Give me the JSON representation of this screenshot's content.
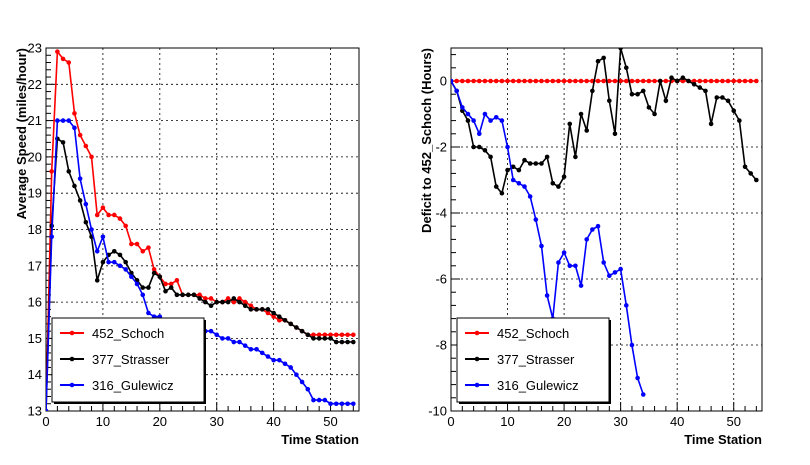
{
  "chart_data": [
    {
      "type": "line",
      "xlabel": "Time Station",
      "ylabel": "Average Speed (miles/hour)",
      "xlim": [
        0,
        55
      ],
      "ylim": [
        13,
        23
      ],
      "xticks": [
        0,
        10,
        20,
        30,
        40,
        50
      ],
      "yticks": [
        13,
        14,
        15,
        16,
        17,
        18,
        19,
        20,
        21,
        22,
        23
      ],
      "grid": true,
      "legend_position": "bottom-left",
      "series": [
        {
          "name": "452_Schoch",
          "color": "#ff0000",
          "x": [
            0,
            1,
            2,
            3,
            4,
            5,
            6,
            7,
            8,
            9,
            10,
            11,
            12,
            13,
            14,
            15,
            16,
            17,
            18,
            19,
            20,
            21,
            22,
            23,
            24,
            25,
            26,
            27,
            28,
            29,
            30,
            31,
            32,
            33,
            34,
            35,
            36,
            37,
            38,
            39,
            40,
            41,
            42,
            43,
            44,
            45,
            46,
            47,
            48,
            49,
            50,
            51,
            52,
            53,
            54
          ],
          "y": [
            13.0,
            19.6,
            22.9,
            22.7,
            22.6,
            21.2,
            20.6,
            20.3,
            20.0,
            18.4,
            18.6,
            18.4,
            18.4,
            18.3,
            18.1,
            17.6,
            17.6,
            17.4,
            17.5,
            16.9,
            16.7,
            16.5,
            16.5,
            16.6,
            16.2,
            16.2,
            16.2,
            16.2,
            16.1,
            16.1,
            16.0,
            16.0,
            16.1,
            16.0,
            16.1,
            16.0,
            15.9,
            15.8,
            15.8,
            15.7,
            15.6,
            15.5,
            15.5,
            15.4,
            15.3,
            15.2,
            15.1,
            15.1,
            15.1,
            15.1,
            15.1,
            15.1,
            15.1,
            15.1,
            15.1
          ]
        },
        {
          "name": "377_Strasser",
          "color": "#000000",
          "x": [
            0,
            1,
            2,
            3,
            4,
            5,
            6,
            7,
            8,
            9,
            10,
            11,
            12,
            13,
            14,
            15,
            16,
            17,
            18,
            19,
            20,
            21,
            22,
            23,
            24,
            25,
            26,
            27,
            28,
            29,
            30,
            31,
            32,
            33,
            34,
            35,
            36,
            37,
            38,
            39,
            40,
            41,
            42,
            43,
            44,
            45,
            46,
            47,
            48,
            49,
            50,
            51,
            52,
            53,
            54
          ],
          "y": [
            13.0,
            18.1,
            20.5,
            20.4,
            19.6,
            19.2,
            18.8,
            18.2,
            17.8,
            16.6,
            17.1,
            17.3,
            17.4,
            17.3,
            17.1,
            16.8,
            16.6,
            16.4,
            16.4,
            16.8,
            16.7,
            16.3,
            16.4,
            16.2,
            16.2,
            16.2,
            16.2,
            16.1,
            16.0,
            15.9,
            16.0,
            16.0,
            16.0,
            16.1,
            16.0,
            15.9,
            15.8,
            15.8,
            15.8,
            15.8,
            15.7,
            15.6,
            15.5,
            15.4,
            15.3,
            15.2,
            15.1,
            15.0,
            15.0,
            15.0,
            15.0,
            14.9,
            14.9,
            14.9,
            14.9
          ]
        },
        {
          "name": "316_Gulewicz",
          "color": "#0000ff",
          "x": [
            0,
            1,
            2,
            3,
            4,
            5,
            6,
            7,
            8,
            9,
            10,
            11,
            12,
            13,
            14,
            15,
            16,
            17,
            18,
            19,
            20,
            21,
            22,
            23,
            24,
            25,
            26,
            27,
            28,
            29,
            30,
            31,
            32,
            33,
            34,
            35,
            36,
            37,
            38,
            39,
            40,
            41,
            42,
            43,
            44,
            45,
            46,
            47,
            48,
            49,
            50,
            51,
            52,
            53,
            54
          ],
          "y": [
            13.0,
            17.8,
            21.0,
            21.0,
            21.0,
            20.8,
            19.4,
            18.7,
            18.0,
            17.4,
            17.8,
            17.1,
            17.1,
            17.0,
            16.9,
            16.7,
            16.5,
            16.2,
            15.7,
            15.6,
            15.6,
            15.4,
            15.4,
            15.3,
            15.3,
            15.3,
            15.3,
            15.3,
            15.2,
            15.2,
            15.1,
            15.0,
            15.0,
            14.9,
            14.9,
            14.8,
            14.7,
            14.7,
            14.6,
            14.5,
            14.4,
            14.4,
            14.3,
            14.2,
            14.0,
            13.8,
            13.6,
            13.3,
            13.3,
            13.3,
            13.2,
            13.2,
            13.2,
            13.2,
            13.2
          ]
        }
      ]
    },
    {
      "type": "line",
      "xlabel": "Time Station",
      "ylabel": "Deficit to 452_Schoch (Hours)",
      "xlim": [
        0,
        55
      ],
      "ylim": [
        -10,
        1
      ],
      "xticks": [
        0,
        10,
        20,
        30,
        40,
        50
      ],
      "yticks": [
        -10,
        -8,
        -6,
        -4,
        -2,
        0
      ],
      "grid": true,
      "legend_position": "bottom-left",
      "series": [
        {
          "name": "452_Schoch",
          "color": "#ff0000",
          "x": [
            0,
            1,
            2,
            3,
            4,
            5,
            6,
            7,
            8,
            9,
            10,
            11,
            12,
            13,
            14,
            15,
            16,
            17,
            18,
            19,
            20,
            21,
            22,
            23,
            24,
            25,
            26,
            27,
            28,
            29,
            30,
            31,
            32,
            33,
            34,
            35,
            36,
            37,
            38,
            39,
            40,
            41,
            42,
            43,
            44,
            45,
            46,
            47,
            48,
            49,
            50,
            51,
            52,
            53,
            54
          ],
          "y": [
            0,
            0,
            0,
            0,
            0,
            0,
            0,
            0,
            0,
            0,
            0,
            0,
            0,
            0,
            0,
            0,
            0,
            0,
            0,
            0,
            0,
            0,
            0,
            0,
            0,
            0,
            0,
            0,
            0,
            0,
            0,
            0,
            0,
            0,
            0,
            0,
            0,
            0,
            0,
            0,
            0,
            0,
            0,
            0,
            0,
            0,
            0,
            0,
            0,
            0,
            0,
            0,
            0,
            0,
            0
          ]
        },
        {
          "name": "377_Strasser",
          "color": "#000000",
          "x": [
            0,
            1,
            2,
            3,
            4,
            5,
            6,
            7,
            8,
            9,
            10,
            11,
            12,
            13,
            14,
            15,
            16,
            17,
            18,
            19,
            20,
            21,
            22,
            23,
            24,
            25,
            26,
            27,
            28,
            29,
            30,
            31,
            32,
            33,
            34,
            35,
            36,
            37,
            38,
            39,
            40,
            41,
            42,
            43,
            44,
            45,
            46,
            47,
            48,
            49,
            50,
            51,
            52,
            53,
            54
          ],
          "y": [
            0,
            -0.3,
            -0.9,
            -1.2,
            -2.0,
            -2.0,
            -2.1,
            -2.3,
            -3.2,
            -3.4,
            -2.7,
            -2.6,
            -2.7,
            -2.4,
            -2.5,
            -2.5,
            -2.5,
            -2.3,
            -3.1,
            -3.2,
            -2.9,
            -1.3,
            -2.3,
            -1.0,
            -1.5,
            -0.3,
            0.6,
            0.7,
            -0.6,
            -1.6,
            1.0,
            0.4,
            -0.4,
            -0.4,
            -0.3,
            -0.8,
            -1.0,
            0.0,
            -0.6,
            0.1,
            0.0,
            0.1,
            0.0,
            -0.1,
            -0.2,
            -0.3,
            -1.3,
            -0.5,
            -0.5,
            -0.6,
            -0.9,
            -1.2,
            -2.6,
            -2.8,
            -3.0
          ]
        },
        {
          "name": "316_Gulewicz",
          "color": "#0000ff",
          "x": [
            0,
            1,
            2,
            3,
            4,
            5,
            6,
            7,
            8,
            9,
            10,
            11,
            12,
            13,
            14,
            15,
            16,
            17,
            18,
            19,
            20,
            21,
            22,
            23,
            24,
            25,
            26,
            27,
            28,
            29,
            30,
            31,
            32,
            33,
            34
          ],
          "y": [
            0,
            -0.3,
            -0.8,
            -1.0,
            -1.2,
            -1.6,
            -1.0,
            -1.2,
            -1.1,
            -1.2,
            -2.0,
            -3.0,
            -3.1,
            -3.2,
            -3.5,
            -4.2,
            -5.0,
            -6.5,
            -7.2,
            -5.5,
            -5.2,
            -5.6,
            -5.6,
            -6.2,
            -4.8,
            -4.5,
            -4.4,
            -5.5,
            -5.9,
            -5.8,
            -5.7,
            -6.8,
            -8.0,
            -9.0,
            -9.5
          ]
        }
      ]
    }
  ]
}
